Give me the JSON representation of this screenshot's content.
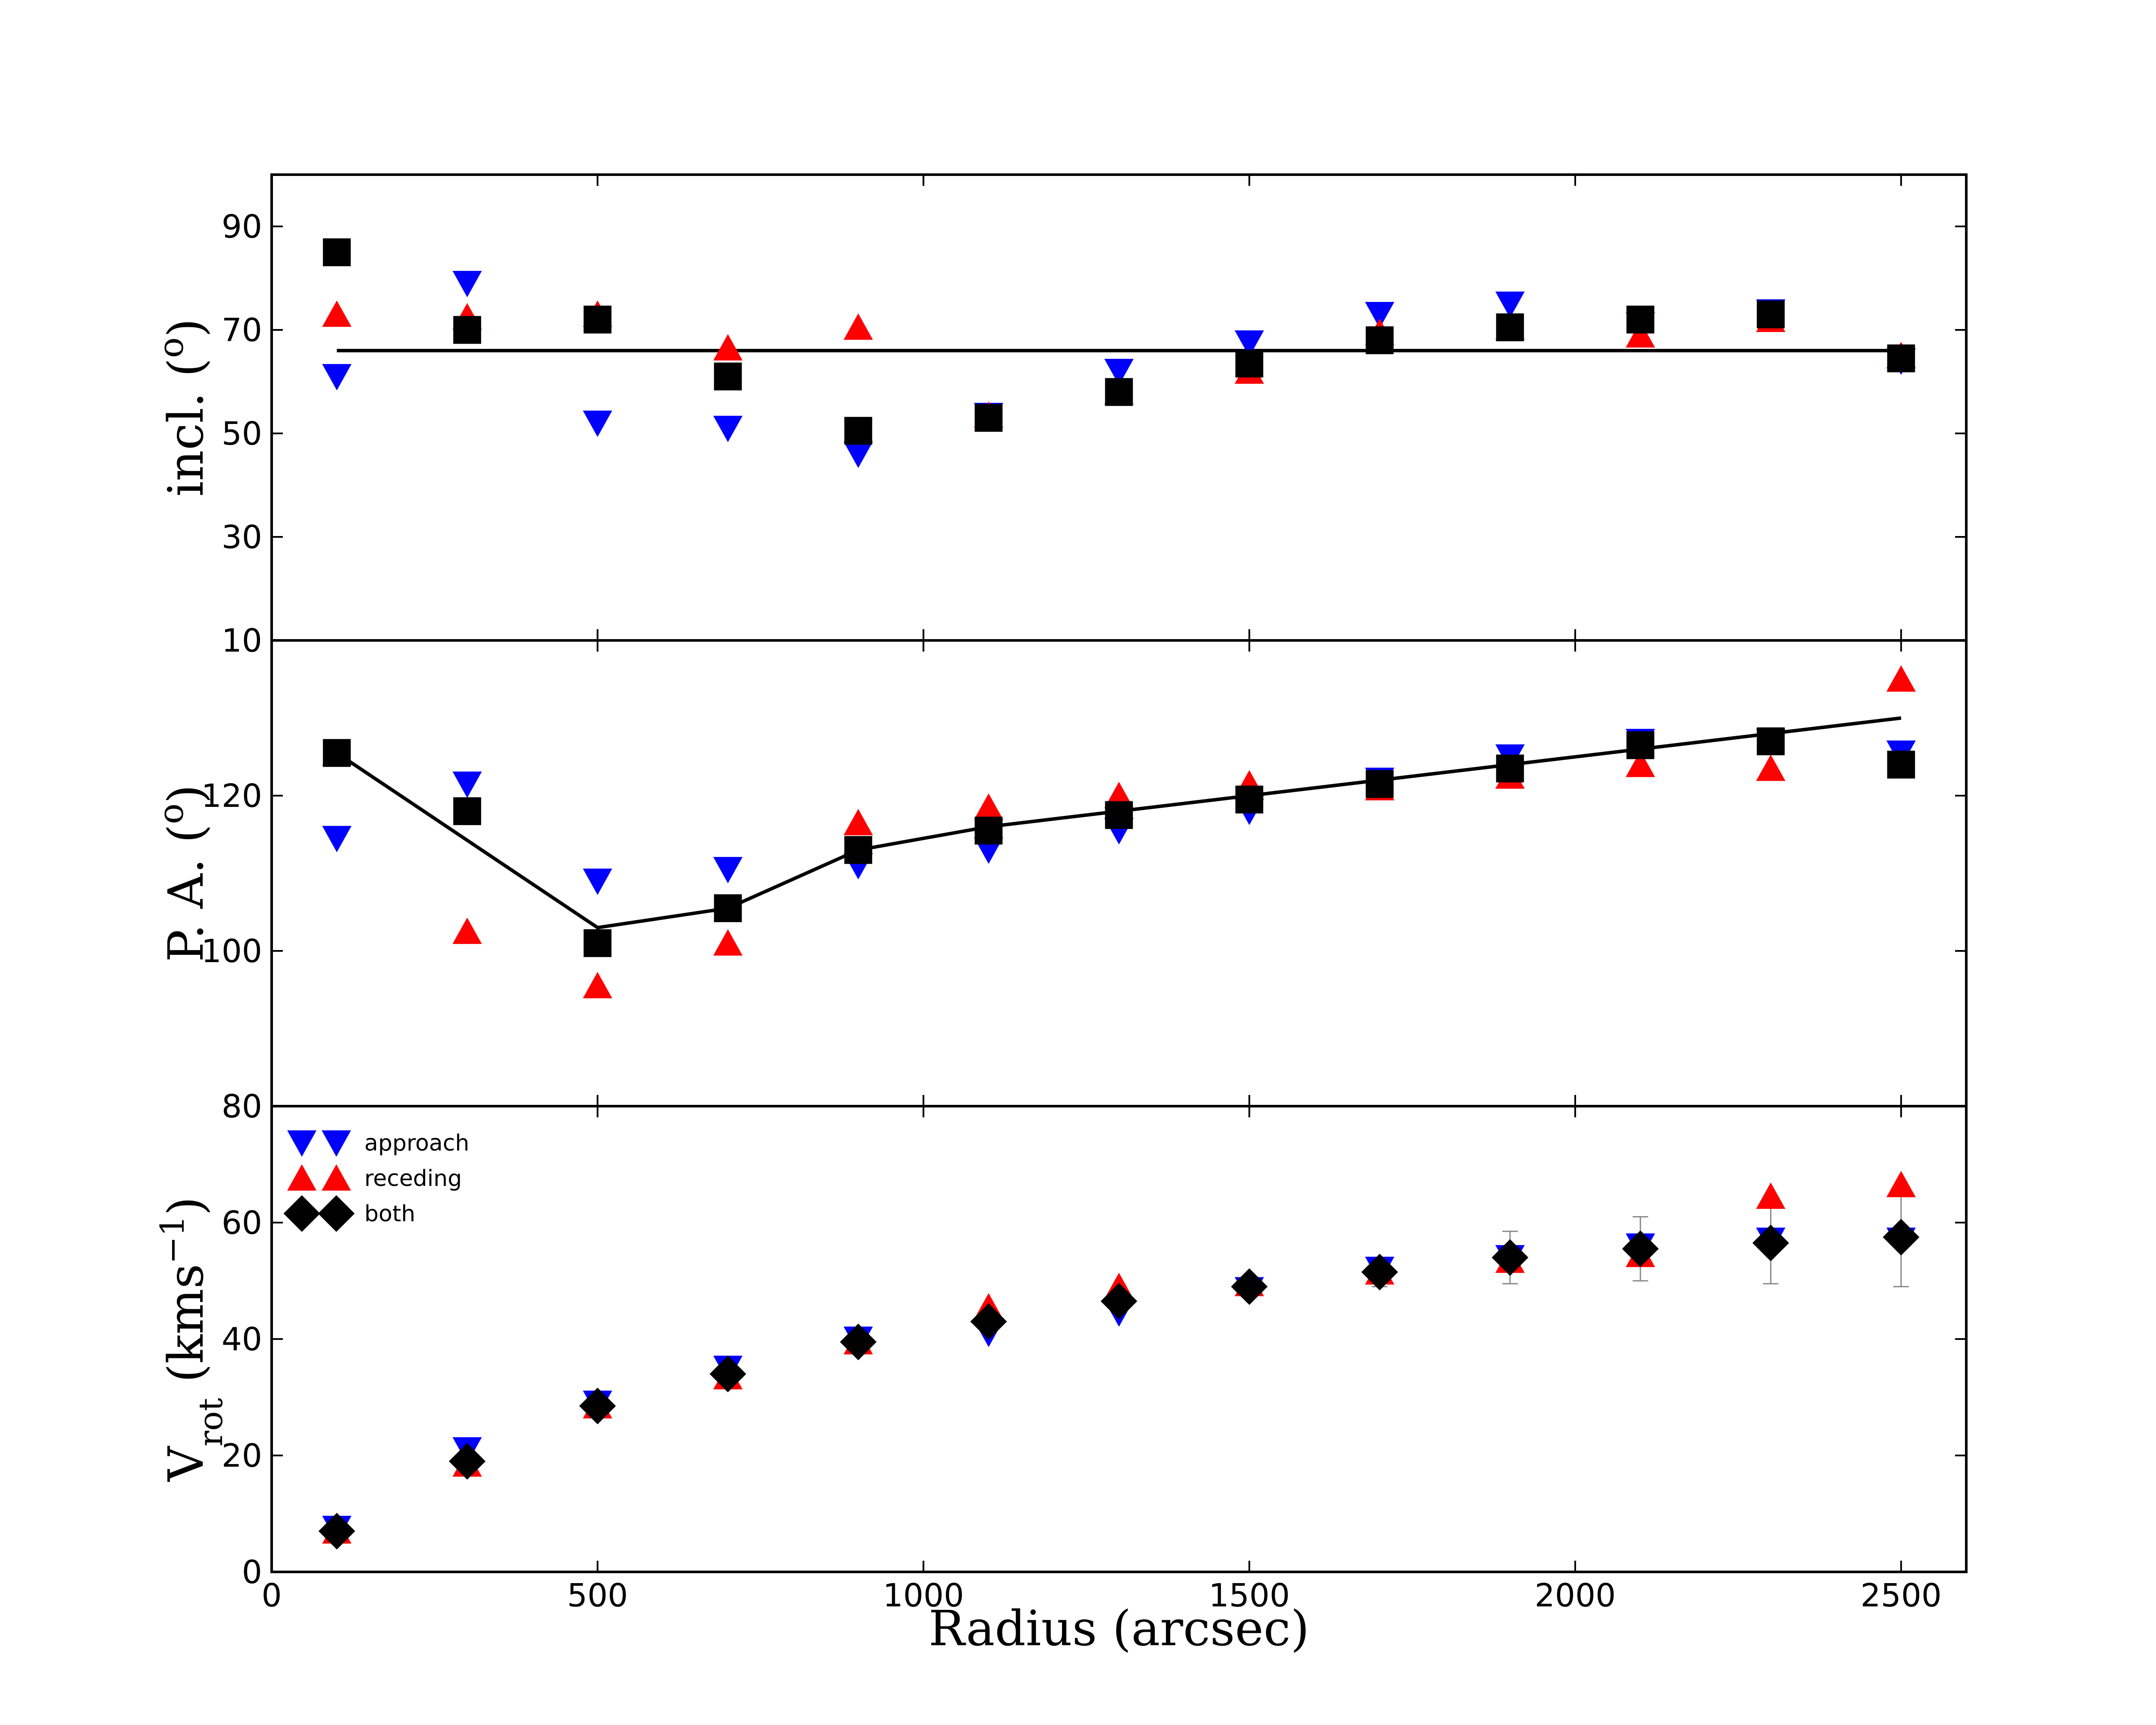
{
  "chart_data": {
    "type": "scatter",
    "xlabel": "Radius (arcsec)",
    "xlim": [
      0,
      2600
    ],
    "xticks": [
      0,
      500,
      1000,
      1500,
      2000,
      2500
    ],
    "x": [
      100,
      300,
      500,
      700,
      900,
      1100,
      1300,
      1500,
      1700,
      1900,
      2100,
      2300,
      2500
    ],
    "legend": {
      "placement": "upper-left of bottom panel",
      "entries": [
        {
          "label": "approach",
          "marker": "triangle-down",
          "color": "#0000ff"
        },
        {
          "label": "receding",
          "marker": "triangle-up",
          "color": "#ff0000"
        },
        {
          "label": "both",
          "marker": "diamond",
          "color": "#000000"
        }
      ]
    },
    "panels": [
      {
        "id": "incl",
        "ylabel": "incl. (o)",
        "ylim": [
          10,
          100
        ],
        "yticks": [
          10,
          30,
          50,
          70,
          90
        ],
        "series": [
          {
            "name": "approach",
            "marker": "triangle-down",
            "color": "#0000ff",
            "values": [
              61,
              79,
              52,
              51,
              46,
              53.5,
              62,
              67.5,
              73,
              75,
              71,
              73.5,
              64
            ]
          },
          {
            "name": "receding",
            "marker": "triangle-up",
            "color": "#ff0000",
            "values": [
              73,
              72.5,
              73,
              66.5,
              70.5,
              53.5,
              58,
              62,
              69.5,
              70.5,
              69,
              72,
              65
            ]
          },
          {
            "name": "both",
            "marker": "square",
            "color": "#000000",
            "values": [
              85,
              70,
              72,
              61,
              50.5,
              53,
              58,
              63.5,
              68,
              70.5,
              72,
              73,
              64.5
            ]
          }
        ],
        "fit_line": {
          "x": [
            100,
            2500
          ],
          "y": [
            66,
            66
          ]
        }
      },
      {
        "id": "pa",
        "ylabel": "P.A. (o)",
        "ylim": [
          80,
          140
        ],
        "yticks": [
          80,
          100,
          120
        ],
        "series": [
          {
            "name": "approach",
            "marker": "triangle-down",
            "color": "#0000ff",
            "values": [
              114.5,
              121.5,
              109,
              110.5,
              111,
              113,
              115.5,
              118,
              122,
              125,
              127,
              127,
              125.5
            ]
          },
          {
            "name": "receding",
            "marker": "triangle-up",
            "color": "#ff0000",
            "values": [
              125.5,
              102.5,
              95.5,
              101,
              116.5,
              118.5,
              120,
              121.5,
              121,
              122.5,
              124,
              123.5,
              135
            ]
          },
          {
            "name": "both",
            "marker": "square",
            "color": "#000000",
            "values": [
              125.5,
              118,
              101,
              105.5,
              113,
              115.5,
              117.5,
              119.5,
              121.5,
              123.5,
              126.5,
              127,
              124
            ]
          }
        ],
        "fit_line": {
          "x": [
            100,
            500,
            700,
            900,
            1100,
            1300,
            1500,
            1700,
            1900,
            2100,
            2300,
            2500
          ],
          "y": [
            125.5,
            103,
            105.5,
            113,
            116,
            118,
            120,
            122,
            124,
            126,
            128,
            130
          ]
        }
      },
      {
        "id": "vrot",
        "ylabel": "V_rot (kms^-1)",
        "ylim": [
          0,
          80
        ],
        "yticks": [
          0,
          20,
          40,
          60
        ],
        "series": [
          {
            "name": "approach",
            "marker": "triangle-down",
            "color": "#0000ff",
            "values": [
              7.5,
              21,
              29,
              35,
              40,
              41,
              44.5,
              48.5,
              52,
              54,
              56,
              57,
              57
            ]
          },
          {
            "name": "receding",
            "marker": "triangle-up",
            "color": "#ff0000",
            "values": [
              7,
              18.5,
              28.5,
              33.5,
              39.5,
              45.5,
              49,
              49.5,
              51.5,
              53.5,
              54.5,
              64.5,
              66.5
            ]
          },
          {
            "name": "both",
            "marker": "diamond",
            "color": "#000000",
            "values": [
              7,
              19,
              28.5,
              34,
              39.5,
              43,
              46.5,
              49,
              51.5,
              54,
              55.5,
              56.5,
              57.5
            ],
            "errors": [
              1.0,
              2.0,
              1.0,
              1.0,
              1.0,
              1.5,
              2.0,
              1.5,
              2.5,
              4.5,
              5.5,
              7.0,
              8.5
            ]
          }
        ]
      }
    ]
  }
}
